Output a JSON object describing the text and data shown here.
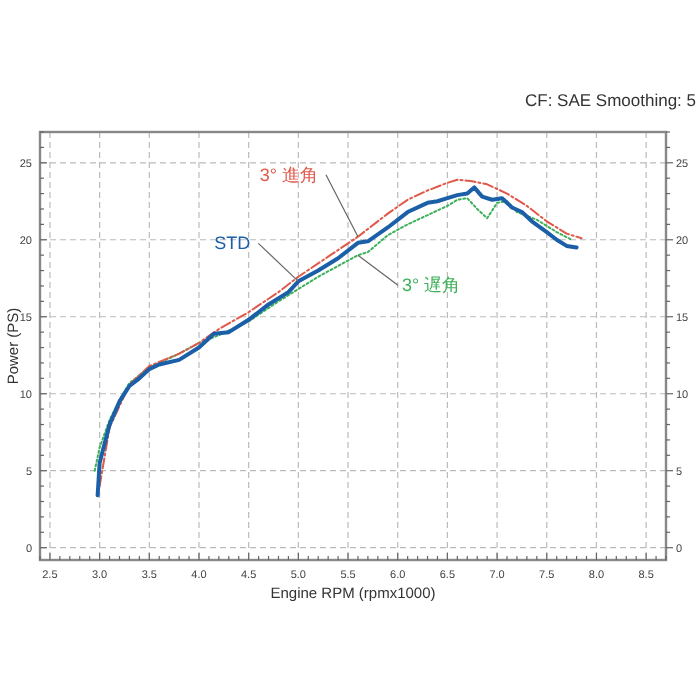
{
  "chart_data": {
    "type": "line",
    "xlabel": "Engine RPM (rpmx1000)",
    "ylabel": "Power (PS)",
    "annotations": [
      "CF: SAE Smoothing: 5"
    ],
    "xlim": [
      2.4,
      8.7
    ],
    "ylim": [
      -0.8,
      27
    ],
    "y2lim": [
      -0.8,
      27
    ],
    "xticks": [
      2.5,
      {
        "value": 3,
        "label": "3.0"
      },
      3.5,
      {
        "value": 4,
        "label": "4.0"
      },
      4.5,
      {
        "value": 5,
        "label": "5.0"
      },
      5.5,
      {
        "value": 6,
        "label": "6.0"
      },
      6.5,
      {
        "value": 7,
        "label": "7.0"
      },
      7.5,
      {
        "value": 8,
        "label": "8.0"
      },
      8.5
    ],
    "yticks": [
      0,
      5,
      10,
      15,
      20,
      25
    ],
    "y2ticks": [
      0,
      5,
      10,
      15,
      20,
      25
    ],
    "grid": true,
    "legend": false,
    "marker": "none",
    "series": [
      {
        "name": "3° 遅角",
        "color": "#3db05a",
        "line_style": "dotted",
        "x": [
          2.95,
          3.0,
          3.1,
          3.2,
          3.3,
          3.5,
          3.8,
          4.0,
          4.2,
          4.5,
          4.8,
          5.0,
          5.2,
          5.4,
          5.6,
          5.7,
          5.9,
          6.1,
          6.3,
          6.5,
          6.6,
          6.7,
          6.8,
          6.9,
          7.0,
          7.1,
          7.2,
          7.4,
          7.6,
          7.75
        ],
        "values": [
          5,
          6.5,
          8.3,
          9.6,
          10.7,
          11.7,
          12.6,
          13.3,
          13.8,
          14.7,
          16.0,
          16.8,
          17.6,
          18.3,
          19.0,
          19.2,
          20.3,
          21.0,
          21.6,
          22.2,
          22.6,
          22.7,
          22.0,
          21.4,
          22.4,
          22.5,
          21.8,
          21.3,
          20.5,
          20.0
        ]
      },
      {
        "name": "3° 進角",
        "color": "#e0584a",
        "line_style": "dashed",
        "x": [
          3.0,
          3.1,
          3.3,
          3.5,
          3.8,
          4.0,
          4.2,
          4.5,
          4.8,
          5.0,
          5.3,
          5.6,
          5.9,
          6.1,
          6.3,
          6.5,
          6.6,
          6.75,
          6.9,
          7.1,
          7.3,
          7.5,
          7.7,
          7.85
        ],
        "values": [
          4,
          7.8,
          10.6,
          11.8,
          12.6,
          13.3,
          14.2,
          15.3,
          16.6,
          17.6,
          18.9,
          20.2,
          21.7,
          22.6,
          23.2,
          23.7,
          23.9,
          23.8,
          23.6,
          23.0,
          22.2,
          21.2,
          20.4,
          20.1
        ]
      },
      {
        "name": "STD",
        "color": "#1a5fa8",
        "line_style": "solid",
        "x": [
          2.98,
          3.0,
          3.1,
          3.2,
          3.3,
          3.4,
          3.5,
          3.6,
          3.8,
          4.0,
          4.15,
          4.3,
          4.5,
          4.7,
          4.9,
          5.0,
          5.2,
          5.4,
          5.6,
          5.7,
          5.9,
          6.1,
          6.3,
          6.4,
          6.5,
          6.6,
          6.7,
          6.77,
          6.85,
          6.95,
          7.05,
          7.15,
          7.25,
          7.35,
          7.5,
          7.6,
          7.7,
          7.8
        ],
        "values": [
          3.4,
          5.5,
          8.0,
          9.5,
          10.5,
          11.0,
          11.6,
          11.9,
          12.2,
          13.0,
          13.9,
          14.0,
          14.8,
          15.8,
          16.6,
          17.3,
          18.0,
          18.8,
          19.8,
          19.9,
          20.8,
          21.8,
          22.4,
          22.5,
          22.7,
          22.9,
          23.0,
          23.4,
          22.8,
          22.6,
          22.7,
          22.1,
          21.8,
          21.2,
          20.5,
          20.0,
          19.6,
          19.5
        ]
      }
    ]
  }
}
